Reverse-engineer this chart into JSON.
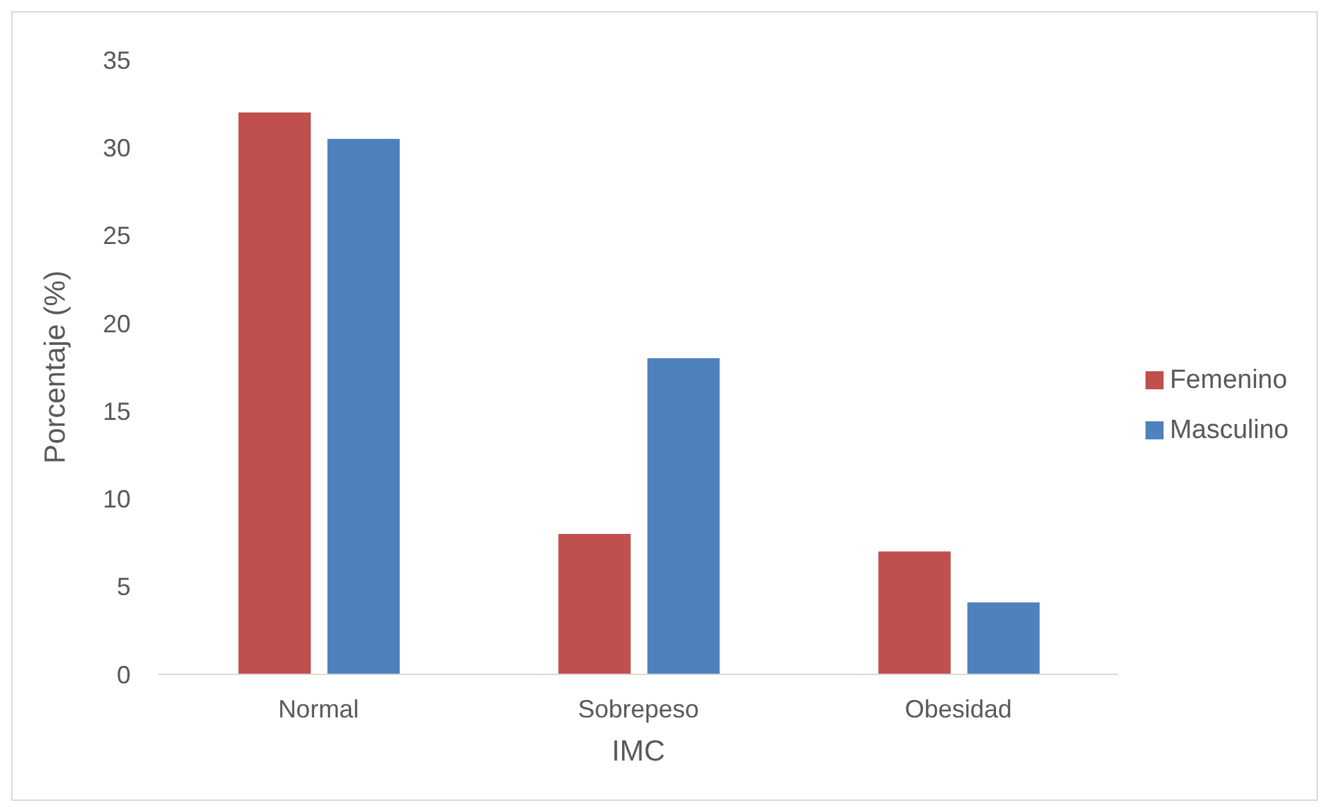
{
  "chart_data": {
    "type": "bar",
    "xlabel": "IMC",
    "ylabel": "Porcentaje (%)",
    "categories": [
      "Normal",
      "Sobrepeso",
      "Obesidad"
    ],
    "series": [
      {
        "name": "Femenino",
        "color": "#c0504d",
        "values": [
          32,
          8,
          7
        ]
      },
      {
        "name": "Masculino",
        "color": "#4f81bd",
        "values": [
          30.5,
          18,
          4.1
        ]
      }
    ],
    "ylim": [
      0,
      35
    ],
    "yticks": [
      0,
      5,
      10,
      15,
      20,
      25,
      30,
      35
    ],
    "grid": false,
    "legend": "right"
  }
}
